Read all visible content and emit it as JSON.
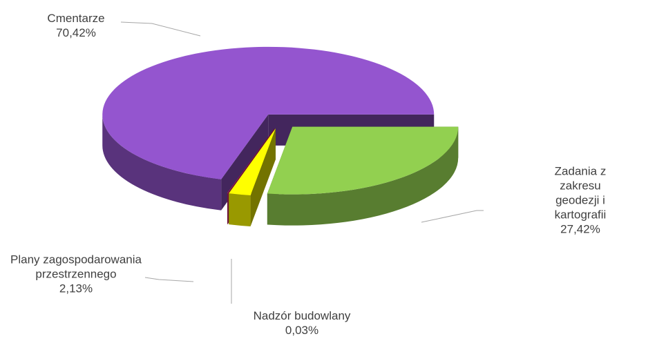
{
  "chart_data": {
    "type": "pie3d",
    "categories": [
      "Cmentarze",
      "Zadania z zakresu\ngeodezji i kartografii",
      "Plany zagospodarowania\nprzestrzennego",
      "Nadzór budowlany"
    ],
    "values": [
      70.42,
      27.42,
      2.13,
      0.03
    ],
    "value_labels": [
      "70,42%",
      "27,42%",
      "2,13%",
      "0,03%"
    ],
    "colors": [
      "#9455cf",
      "#92d050",
      "#ffff00",
      "#e0287a"
    ]
  }
}
